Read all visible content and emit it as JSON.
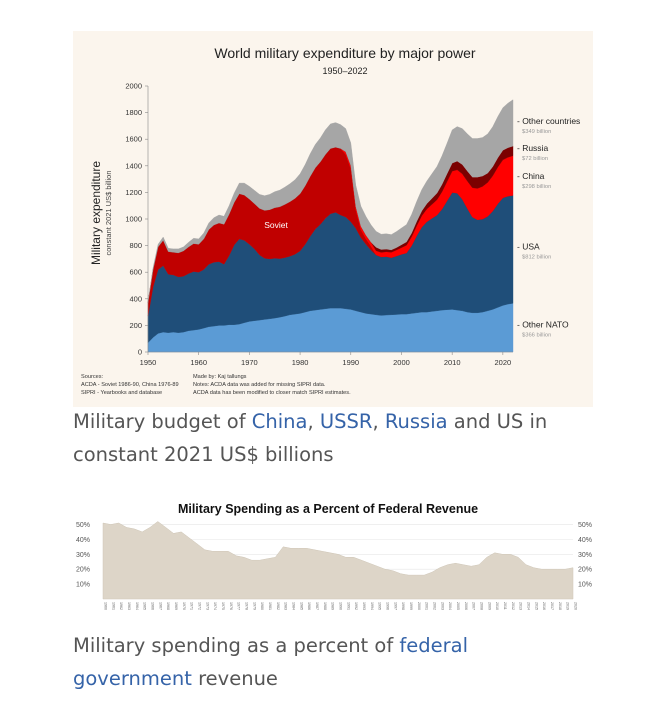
{
  "figure1": {
    "chart_data": {
      "type": "area",
      "stacked": true,
      "title": "World military expenditure by major power",
      "subtitle": "1950–2022",
      "ylabel": "Military expenditure",
      "ylabel_sub": "constant 2021 US$ billion",
      "xlim": [
        1950,
        2022
      ],
      "ylim": [
        0,
        2000
      ],
      "x_ticks": [
        1950,
        1960,
        1970,
        1980,
        1990,
        2000,
        2010,
        2020
      ],
      "y_ticks": [
        0,
        200,
        400,
        600,
        800,
        1000,
        1200,
        1400,
        1600,
        1800,
        2000
      ],
      "grid": false,
      "x": [
        1950,
        1951,
        1952,
        1953,
        1954,
        1955,
        1956,
        1957,
        1958,
        1959,
        1960,
        1961,
        1962,
        1963,
        1964,
        1965,
        1966,
        1967,
        1968,
        1969,
        1970,
        1971,
        1972,
        1973,
        1974,
        1975,
        1976,
        1977,
        1978,
        1979,
        1980,
        1981,
        1982,
        1983,
        1984,
        1985,
        1986,
        1987,
        1988,
        1989,
        1990,
        1991,
        1992,
        1993,
        1994,
        1995,
        1996,
        1997,
        1998,
        1999,
        2000,
        2001,
        2002,
        2003,
        2004,
        2005,
        2006,
        2007,
        2008,
        2009,
        2010,
        2011,
        2012,
        2013,
        2014,
        2015,
        2016,
        2017,
        2018,
        2019,
        2020,
        2021,
        2022
      ],
      "series": [
        {
          "name": "Other NATO",
          "value_label": "$366 billion",
          "color": "#5b9bd5",
          "values": [
            70,
            110,
            140,
            150,
            145,
            150,
            145,
            150,
            160,
            165,
            170,
            180,
            190,
            195,
            200,
            200,
            205,
            205,
            210,
            220,
            230,
            235,
            240,
            245,
            250,
            255,
            262,
            270,
            280,
            285,
            290,
            300,
            310,
            315,
            320,
            325,
            330,
            330,
            330,
            325,
            320,
            310,
            300,
            290,
            285,
            280,
            275,
            278,
            280,
            282,
            285,
            285,
            290,
            295,
            300,
            300,
            305,
            310,
            315,
            318,
            320,
            315,
            310,
            300,
            295,
            295,
            300,
            310,
            320,
            335,
            350,
            360,
            366
          ]
        },
        {
          "name": "USA",
          "value_label": "$812 billion",
          "color": "#1f4e79",
          "values": [
            200,
            380,
            480,
            500,
            440,
            430,
            420,
            420,
            430,
            440,
            430,
            440,
            470,
            480,
            480,
            460,
            520,
            600,
            640,
            620,
            580,
            540,
            490,
            460,
            450,
            450,
            440,
            440,
            440,
            450,
            470,
            510,
            560,
            610,
            640,
            680,
            710,
            720,
            700,
            690,
            660,
            620,
            560,
            520,
            480,
            450,
            440,
            440,
            430,
            440,
            450,
            460,
            510,
            580,
            640,
            680,
            700,
            720,
            760,
            820,
            880,
            880,
            840,
            780,
            720,
            700,
            700,
            710,
            740,
            780,
            810,
            812,
            812
          ]
        },
        {
          "name": "Soviet",
          "color": "#c00000",
          "values": [
            100,
            130,
            170,
            190,
            170,
            170,
            180,
            190,
            200,
            210,
            210,
            230,
            260,
            280,
            290,
            300,
            310,
            320,
            340,
            340,
            340,
            340,
            350,
            360,
            370,
            380,
            390,
            400,
            410,
            420,
            430,
            440,
            450,
            460,
            470,
            480,
            490,
            490,
            500,
            470,
            400,
            140,
            60,
            40,
            30,
            0,
            0,
            0,
            0,
            0,
            0,
            0,
            0,
            0,
            0,
            0,
            0,
            0,
            0,
            0,
            0,
            0,
            0,
            0,
            0,
            0,
            0,
            0,
            0,
            0,
            0,
            0,
            0
          ]
        },
        {
          "name": "China",
          "value_label": "$298 billion",
          "color": "#ff0000",
          "values": [
            0,
            0,
            0,
            0,
            0,
            0,
            0,
            0,
            0,
            0,
            0,
            0,
            0,
            0,
            0,
            0,
            0,
            0,
            0,
            0,
            0,
            0,
            0,
            0,
            0,
            0,
            0,
            0,
            0,
            0,
            0,
            0,
            0,
            0,
            0,
            0,
            0,
            0,
            0,
            20,
            22,
            24,
            26,
            28,
            30,
            32,
            34,
            36,
            40,
            45,
            50,
            58,
            66,
            75,
            85,
            95,
            105,
            115,
            130,
            145,
            160,
            175,
            190,
            205,
            220,
            235,
            245,
            255,
            265,
            275,
            285,
            292,
            298
          ]
        },
        {
          "name": "Russia",
          "value_label": "$72 billion",
          "color": "#7b0000",
          "values": [
            0,
            0,
            0,
            0,
            0,
            0,
            0,
            0,
            0,
            0,
            0,
            0,
            0,
            0,
            0,
            0,
            0,
            0,
            0,
            0,
            0,
            0,
            0,
            0,
            0,
            0,
            0,
            0,
            0,
            0,
            0,
            0,
            0,
            0,
            0,
            0,
            0,
            0,
            0,
            0,
            0,
            0,
            0,
            0,
            0,
            25,
            22,
            20,
            18,
            18,
            22,
            25,
            28,
            32,
            36,
            40,
            45,
            50,
            55,
            58,
            60,
            65,
            70,
            75,
            80,
            85,
            78,
            70,
            68,
            70,
            72,
            72,
            72
          ]
        },
        {
          "name": "Other countries",
          "value_label": "$349 billion",
          "color": "#a6a6a6",
          "values": [
            10,
            15,
            20,
            25,
            25,
            25,
            30,
            30,
            35,
            40,
            40,
            45,
            50,
            55,
            60,
            60,
            65,
            70,
            80,
            90,
            95,
            100,
            105,
            110,
            115,
            120,
            125,
            130,
            135,
            140,
            150,
            160,
            170,
            175,
            180,
            185,
            185,
            185,
            180,
            175,
            170,
            160,
            150,
            140,
            130,
            120,
            115,
            115,
            115,
            120,
            125,
            130,
            140,
            150,
            160,
            170,
            185,
            200,
            215,
            230,
            250,
            260,
            270,
            280,
            290,
            290,
            290,
            295,
            300,
            310,
            320,
            335,
            349
          ]
        }
      ],
      "soviet_label": "Soviet"
    },
    "sources_block": {
      "sources_title": "Sources:",
      "source_1": "ACDA - Soviet 1986-90, China 1976-89",
      "source_2": "SIPRI - Yearbooks and database",
      "made_by": "Made by: Kaj tallungs",
      "note_1": "Notes: ACDA data was added for missing SIPRI data.",
      "note_2": "ACDA data has been modified to closer match SIPRI estimates."
    }
  },
  "caption1": {
    "part1": "Military budget of ",
    "link_china": "China",
    "sep1": ", ",
    "link_ussr": "USSR",
    "sep2": ", ",
    "link_russia": "Russia",
    "part2": " and US in constant 2021 US$ billions"
  },
  "figure2": {
    "chart_data": {
      "type": "area",
      "title": "Military Spending as a Percent of Federal Revenue",
      "ylim": [
        0,
        55
      ],
      "y_ticks_labels": [
        "50%",
        "40%",
        "30%",
        "20%",
        "10%"
      ],
      "y_ticks": [
        50,
        40,
        30,
        20,
        10
      ],
      "grid": true,
      "color": "#ddd5c8",
      "x": [
        1960,
        1961,
        1962,
        1963,
        1964,
        1965,
        1966,
        1967,
        1968,
        1969,
        1970,
        1971,
        1972,
        1973,
        1974,
        1975,
        1976,
        1977,
        1978,
        1979,
        1980,
        1981,
        1982,
        1983,
        1984,
        1985,
        1986,
        1987,
        1988,
        1989,
        1990,
        1991,
        1992,
        1993,
        1994,
        1995,
        1996,
        1997,
        1998,
        1999,
        2000,
        2001,
        2002,
        2003,
        2004,
        2005,
        2006,
        2007,
        2008,
        2009,
        2010,
        2011,
        2012,
        2013,
        2014,
        2015,
        2016,
        2017,
        2018,
        2019,
        2020
      ],
      "x_tick_labels": [
        "1960",
        "1961",
        "1962",
        "1963",
        "1964",
        "1965",
        "1966",
        "1967",
        "1968",
        "1969",
        "1970",
        "1971",
        "1972",
        "1973",
        "1974",
        "1975",
        "1976",
        "1977",
        "1978",
        "1979",
        "1980",
        "1981",
        "1982",
        "1983",
        "1984",
        "1985",
        "1986",
        "1987",
        "1988",
        "1989",
        "1990",
        "1991",
        "1992",
        "1993",
        "1994",
        "1995",
        "1996",
        "1997",
        "1998",
        "1999",
        "2000",
        "2001",
        "2002",
        "2003",
        "2004",
        "2005",
        "2006",
        "2007",
        "2008",
        "2009",
        "2010",
        "2011",
        "2012",
        "2013",
        "2014",
        "2015",
        "2016",
        "2017",
        "2018",
        "2019",
        "2020"
      ],
      "values": [
        51,
        50,
        51,
        48,
        47,
        45,
        48,
        52,
        48,
        44,
        45,
        41,
        37,
        33,
        32,
        32,
        32,
        29,
        28,
        26,
        26,
        27,
        28,
        35,
        34,
        34,
        34,
        33,
        32,
        31,
        30,
        28,
        28,
        26,
        24,
        22,
        20,
        19,
        17,
        16,
        16,
        16,
        18,
        21,
        23,
        24,
        23,
        22,
        23,
        28,
        31,
        30,
        30,
        28,
        23,
        21,
        20,
        20,
        20,
        20,
        21
      ]
    }
  },
  "caption2": {
    "part1": "Military spending as a percent of ",
    "link_federal": "federal government",
    "part2": " revenue"
  }
}
